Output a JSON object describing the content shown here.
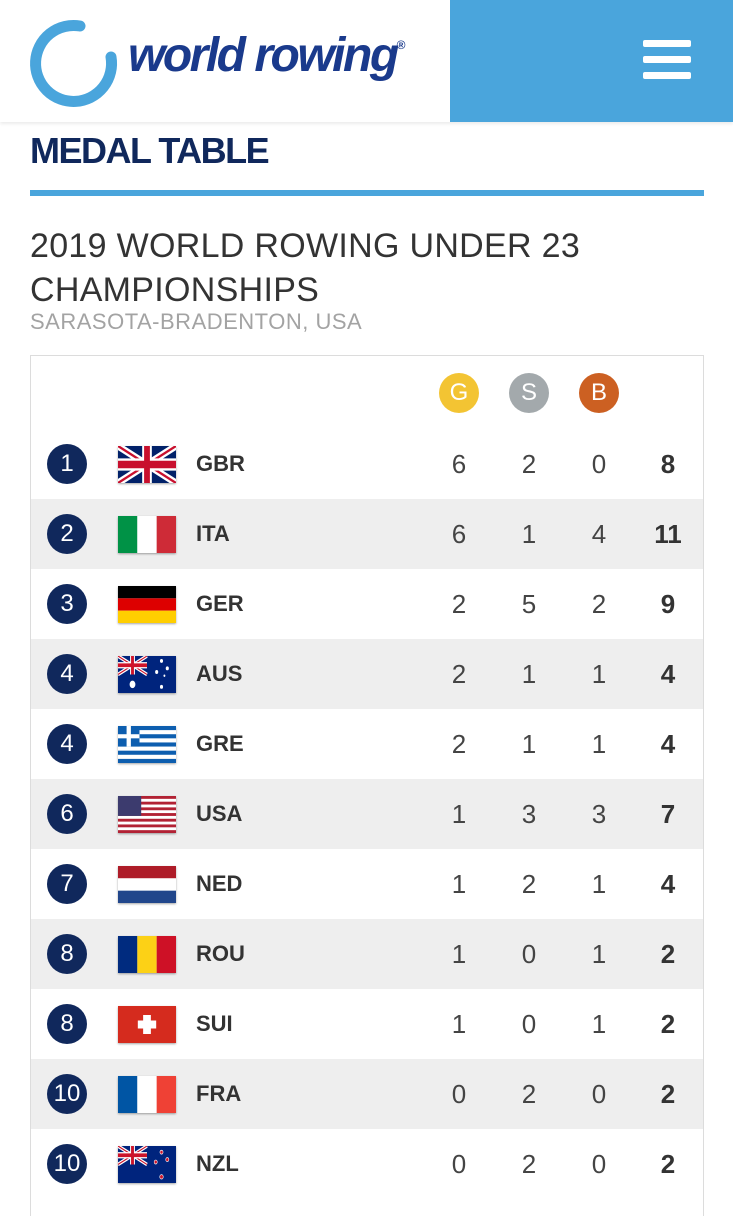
{
  "header": {
    "logo_text": "world rowing",
    "logo_mark": "®",
    "brand_color": "#1a3a8c",
    "accent_color": "#4aa5dc",
    "menu_icon": "hamburger-menu-icon"
  },
  "page": {
    "section_title": "MEDAL TABLE",
    "event_title": "2019 WORLD ROWING UNDER 23 CHAMPIONSHIPS",
    "event_location": "SARASOTA-BRADENTON, USA"
  },
  "medal_headers": {
    "gold": "G",
    "silver": "S",
    "bronze": "B",
    "gold_color": "#f3c433",
    "silver_color": "#a3a9ac",
    "bronze_color": "#cc6022"
  },
  "rows": [
    {
      "rank": "1",
      "code": "GBR",
      "gold": "6",
      "silver": "2",
      "bronze": "0",
      "total": "8",
      "flag": "gbr-flag-icon"
    },
    {
      "rank": "2",
      "code": "ITA",
      "gold": "6",
      "silver": "1",
      "bronze": "4",
      "total": "11",
      "flag": "ita-flag-icon"
    },
    {
      "rank": "3",
      "code": "GER",
      "gold": "2",
      "silver": "5",
      "bronze": "2",
      "total": "9",
      "flag": "ger-flag-icon"
    },
    {
      "rank": "4",
      "code": "AUS",
      "gold": "2",
      "silver": "1",
      "bronze": "1",
      "total": "4",
      "flag": "aus-flag-icon"
    },
    {
      "rank": "4",
      "code": "GRE",
      "gold": "2",
      "silver": "1",
      "bronze": "1",
      "total": "4",
      "flag": "gre-flag-icon"
    },
    {
      "rank": "6",
      "code": "USA",
      "gold": "1",
      "silver": "3",
      "bronze": "3",
      "total": "7",
      "flag": "usa-flag-icon"
    },
    {
      "rank": "7",
      "code": "NED",
      "gold": "1",
      "silver": "2",
      "bronze": "1",
      "total": "4",
      "flag": "ned-flag-icon"
    },
    {
      "rank": "8",
      "code": "ROU",
      "gold": "1",
      "silver": "0",
      "bronze": "1",
      "total": "2",
      "flag": "rou-flag-icon"
    },
    {
      "rank": "8",
      "code": "SUI",
      "gold": "1",
      "silver": "0",
      "bronze": "1",
      "total": "2",
      "flag": "sui-flag-icon"
    },
    {
      "rank": "10",
      "code": "FRA",
      "gold": "0",
      "silver": "2",
      "bronze": "0",
      "total": "2",
      "flag": "fra-flag-icon"
    },
    {
      "rank": "10",
      "code": "NZL",
      "gold": "0",
      "silver": "2",
      "bronze": "0",
      "total": "2",
      "flag": "nzl-flag-icon"
    }
  ]
}
